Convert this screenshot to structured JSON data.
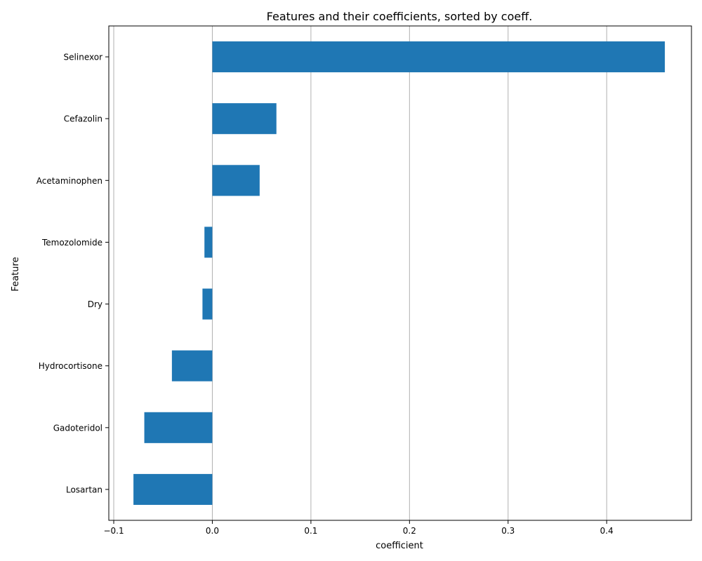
{
  "chart_data": {
    "type": "bar",
    "orientation": "horizontal",
    "title": "Features and their coefficients, sorted by coeff.",
    "xlabel": "coefficient",
    "ylabel": "Feature",
    "categories": [
      "Selinexor",
      "Cefazolin",
      "Acetaminophen",
      "Temozolomide",
      "Dry",
      "Hydrocortisone",
      "Gadoteridol",
      "Losartan"
    ],
    "values": [
      0.459,
      0.065,
      0.048,
      -0.008,
      -0.01,
      -0.041,
      -0.069,
      -0.08
    ],
    "xlim": [
      -0.105,
      0.486
    ],
    "xticks": [
      -0.1,
      0.0,
      0.1,
      0.2,
      0.3,
      0.4
    ],
    "xtick_labels": [
      "−0.1",
      "0.0",
      "0.1",
      "0.2",
      "0.3",
      "0.4"
    ],
    "grid": "x-major",
    "bar_color": "#1f77b4",
    "grid_color": "#b0b0b0"
  }
}
